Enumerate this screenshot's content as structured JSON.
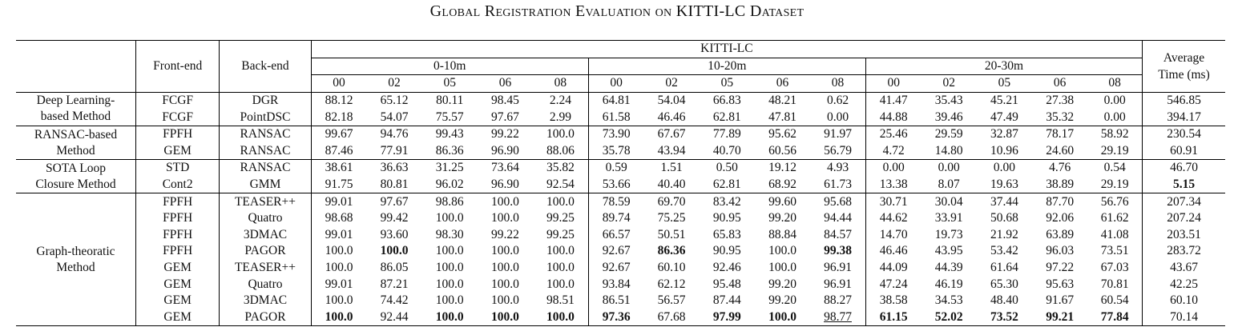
{
  "caption": "Global Registration Evaluation on KITTI-LC Dataset",
  "header": {
    "front_end": "Front-end",
    "back_end": "Back-end",
    "dataset": "KITTI-LC",
    "ranges": [
      "0-10m",
      "10-20m",
      "20-30m"
    ],
    "seqs": [
      "00",
      "02",
      "05",
      "06",
      "08"
    ],
    "avg_time_line1": "Average",
    "avg_time_line2": "Time (ms)"
  },
  "groups": [
    {
      "cat": [
        "Deep Learning-",
        "based Method"
      ],
      "rows": [
        {
          "fe": "FCGF",
          "be": "DGR",
          "v": [
            "88.12",
            "65.12",
            "80.11",
            "98.45",
            "2.24",
            "64.81",
            "54.04",
            "66.83",
            "48.21",
            "0.62",
            "41.47",
            "35.43",
            "45.21",
            "27.38",
            "0.00"
          ],
          "t": "546.85",
          "bold": [],
          "under": []
        },
        {
          "fe": "FCGF",
          "be": "PointDSC",
          "v": [
            "82.18",
            "54.07",
            "75.57",
            "97.67",
            "2.99",
            "61.58",
            "46.46",
            "62.81",
            "47.81",
            "0.00",
            "44.88",
            "39.46",
            "47.49",
            "35.32",
            "0.00"
          ],
          "t": "394.17",
          "bold": [],
          "under": []
        }
      ]
    },
    {
      "cat": [
        "RANSAC-based",
        "Method"
      ],
      "rows": [
        {
          "fe": "FPFH",
          "be": "RANSAC",
          "v": [
            "99.67",
            "94.76",
            "99.43",
            "99.22",
            "100.0",
            "73.90",
            "67.67",
            "77.89",
            "95.62",
            "91.97",
            "25.46",
            "29.59",
            "32.87",
            "78.17",
            "58.92"
          ],
          "t": "230.54",
          "bold": [],
          "under": []
        },
        {
          "fe": "GEM",
          "be": "RANSAC",
          "v": [
            "87.46",
            "77.91",
            "86.36",
            "96.90",
            "88.06",
            "35.78",
            "43.94",
            "40.70",
            "60.56",
            "56.79",
            "4.72",
            "14.80",
            "10.96",
            "24.60",
            "29.19"
          ],
          "t": "60.91",
          "bold": [],
          "under": []
        }
      ]
    },
    {
      "cat": [
        "SOTA Loop",
        "Closure Method"
      ],
      "rows": [
        {
          "fe": "STD",
          "be": "RANSAC",
          "v": [
            "38.61",
            "36.63",
            "31.25",
            "73.64",
            "35.82",
            "0.59",
            "1.51",
            "0.50",
            "19.12",
            "4.93",
            "0.00",
            "0.00",
            "0.00",
            "4.76",
            "0.54"
          ],
          "t": "46.70",
          "bold": [],
          "under": []
        },
        {
          "fe": "Cont2",
          "be": "GMM",
          "v": [
            "91.75",
            "80.81",
            "96.02",
            "96.90",
            "92.54",
            "53.66",
            "40.40",
            "62.81",
            "68.92",
            "61.73",
            "13.38",
            "8.07",
            "19.63",
            "38.89",
            "29.19"
          ],
          "t": "5.15",
          "bold": [
            15
          ],
          "under": []
        }
      ]
    },
    {
      "cat": [
        "Graph-theoratic",
        "Method"
      ],
      "rows": [
        {
          "fe": "FPFH",
          "be": "TEASER++",
          "v": [
            "99.01",
            "97.67",
            "98.86",
            "100.0",
            "100.0",
            "78.59",
            "69.70",
            "83.42",
            "99.60",
            "95.68",
            "30.71",
            "30.04",
            "37.44",
            "87.70",
            "56.76"
          ],
          "t": "207.34",
          "bold": [],
          "under": []
        },
        {
          "fe": "FPFH",
          "be": "Quatro",
          "v": [
            "98.68",
            "99.42",
            "100.0",
            "100.0",
            "99.25",
            "89.74",
            "75.25",
            "90.95",
            "99.20",
            "94.44",
            "44.62",
            "33.91",
            "50.68",
            "92.06",
            "61.62"
          ],
          "t": "207.24",
          "bold": [],
          "under": []
        },
        {
          "fe": "FPFH",
          "be": "3DMAC",
          "v": [
            "99.01",
            "93.60",
            "98.30",
            "99.22",
            "99.25",
            "66.57",
            "50.51",
            "65.83",
            "88.84",
            "84.57",
            "14.70",
            "19.73",
            "21.92",
            "63.89",
            "41.08"
          ],
          "t": "203.51",
          "bold": [],
          "under": []
        },
        {
          "fe": "FPFH",
          "be": "PAGOR",
          "v": [
            "100.0",
            "100.0",
            "100.0",
            "100.0",
            "100.0",
            "92.67",
            "86.36",
            "90.95",
            "100.0",
            "99.38",
            "46.46",
            "43.95",
            "53.42",
            "96.03",
            "73.51"
          ],
          "t": "283.72",
          "bold": [
            1,
            6,
            9
          ],
          "under": []
        },
        {
          "fe": "GEM",
          "be": "TEASER++",
          "v": [
            "100.0",
            "86.05",
            "100.0",
            "100.0",
            "100.0",
            "92.67",
            "60.10",
            "92.46",
            "100.0",
            "96.91",
            "44.09",
            "44.39",
            "61.64",
            "97.22",
            "67.03"
          ],
          "t": "43.67",
          "bold": [],
          "under": []
        },
        {
          "fe": "GEM",
          "be": "Quatro",
          "v": [
            "99.01",
            "87.21",
            "100.0",
            "100.0",
            "100.0",
            "93.84",
            "62.12",
            "95.48",
            "99.20",
            "96.91",
            "47.24",
            "46.19",
            "65.30",
            "95.63",
            "70.81"
          ],
          "t": "42.25",
          "bold": [],
          "under": []
        },
        {
          "fe": "GEM",
          "be": "3DMAC",
          "v": [
            "100.0",
            "74.42",
            "100.0",
            "100.0",
            "98.51",
            "86.51",
            "56.57",
            "87.44",
            "99.20",
            "88.27",
            "38.58",
            "34.53",
            "48.40",
            "91.67",
            "60.54"
          ],
          "t": "60.10",
          "bold": [],
          "under": []
        },
        {
          "fe": "GEM",
          "be": "PAGOR",
          "v": [
            "100.0",
            "92.44",
            "100.0",
            "100.0",
            "100.0",
            "97.36",
            "67.68",
            "97.99",
            "100.0",
            "98.77",
            "61.15",
            "52.02",
            "73.52",
            "99.21",
            "77.84"
          ],
          "t": "70.14",
          "bold": [
            0,
            2,
            3,
            4,
            5,
            7,
            8,
            10,
            11,
            12,
            13,
            14
          ],
          "under": [
            9
          ]
        }
      ]
    }
  ]
}
